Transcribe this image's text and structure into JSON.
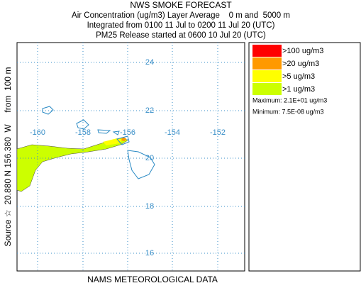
{
  "header": {
    "title": "NWS SMOKE FORECAST",
    "lines": [
      "Air Concentration (ug/m3) Layer Average    0 m and  5000 m",
      "Integrated from 0100 11 Jul to 0200 11 Jul 20 (UTC)",
      "PM25 Release started at 0600 10 Jul 20 (UTC)"
    ]
  },
  "map": {
    "latitude_labels": [
      "24",
      "22",
      "20",
      "18",
      "16"
    ],
    "longitude_labels": [
      "-160",
      "-158",
      "-156",
      "-154",
      "-152"
    ],
    "source_label": "Source ☆  20.880 N 156.380  W     from  100 m",
    "footer": "NAMS METEOROLOGICAL DATA"
  },
  "legend": {
    "items": [
      {
        "label": ">100 ug/m3",
        "color": "#ff0000"
      },
      {
        "label": ">20 ug/m3",
        "color": "#ff9900"
      },
      {
        "label": ">5 ug/m3",
        "color": "#ffff00"
      },
      {
        "label": ">1 ug/m3",
        "color": "#ccff00"
      }
    ],
    "maximum": "Maximum: 2.1E+01 ug/m3",
    "minimum": "Minimum: 7.5E-08 ug/m3"
  }
}
